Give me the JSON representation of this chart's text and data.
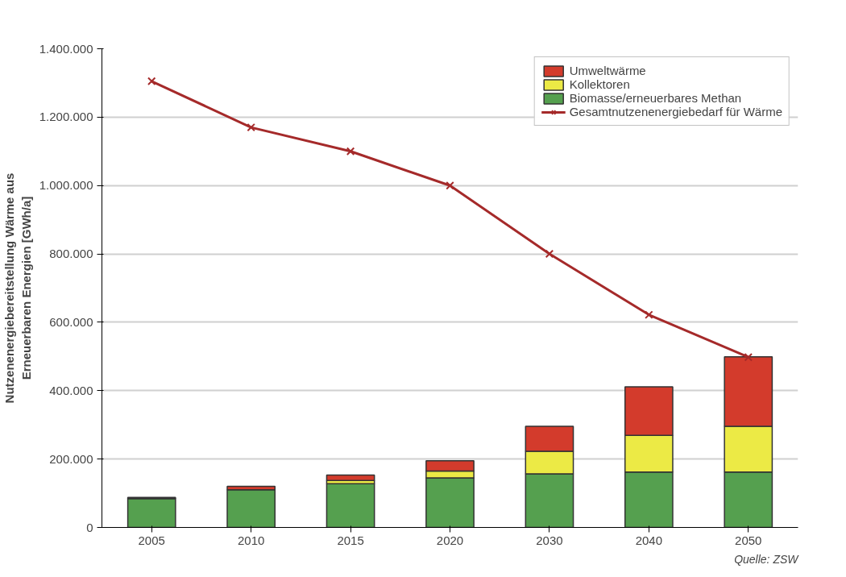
{
  "chart_data": {
    "type": "bar",
    "stacked": true,
    "ylabel": "Nutzenenergiebereitstellung Wärme aus\nErneuerbaren Energien [GWh/a]",
    "categories": [
      "2005",
      "2010",
      "2015",
      "2020",
      "2030",
      "2040",
      "2050"
    ],
    "series": [
      {
        "name": "Biomasse/erneuerbares Methan",
        "color": "#55a04f",
        "values": [
          84000,
          110000,
          128000,
          145000,
          157000,
          162000,
          162000
        ]
      },
      {
        "name": "Kollektoren",
        "color": "#ecea45",
        "values": [
          null,
          null,
          9000,
          20000,
          66000,
          107000,
          134000
        ]
      },
      {
        "name": "Umweltwärme",
        "color": "#d33b2c",
        "values": [
          4000,
          10000,
          16000,
          30000,
          73000,
          142000,
          203000
        ]
      },
      {
        "name": "Gesamtnutzenenergiebedarf für Wärme",
        "type": "line",
        "color": "#a52a2a",
        "marker": "cross",
        "values": [
          1305000,
          1170000,
          1100000,
          1000000,
          800000,
          622000,
          498000
        ]
      }
    ],
    "ylim": [
      0,
      1400000
    ],
    "yticks": [
      {
        "value": 0,
        "label": "0"
      },
      {
        "value": 200000,
        "label": "200.000"
      },
      {
        "value": 400000,
        "label": "400.000"
      },
      {
        "value": 600000,
        "label": "600.000"
      },
      {
        "value": 800000,
        "label": "800.000"
      },
      {
        "value": 1000000,
        "label": "1.000.000"
      },
      {
        "value": 1200000,
        "label": "1.200.000"
      },
      {
        "value": 1400000,
        "label": "1.400.000"
      }
    ],
    "grid": "y",
    "legend": "top right",
    "annotations": [
      "Quelle: ZSW"
    ]
  }
}
